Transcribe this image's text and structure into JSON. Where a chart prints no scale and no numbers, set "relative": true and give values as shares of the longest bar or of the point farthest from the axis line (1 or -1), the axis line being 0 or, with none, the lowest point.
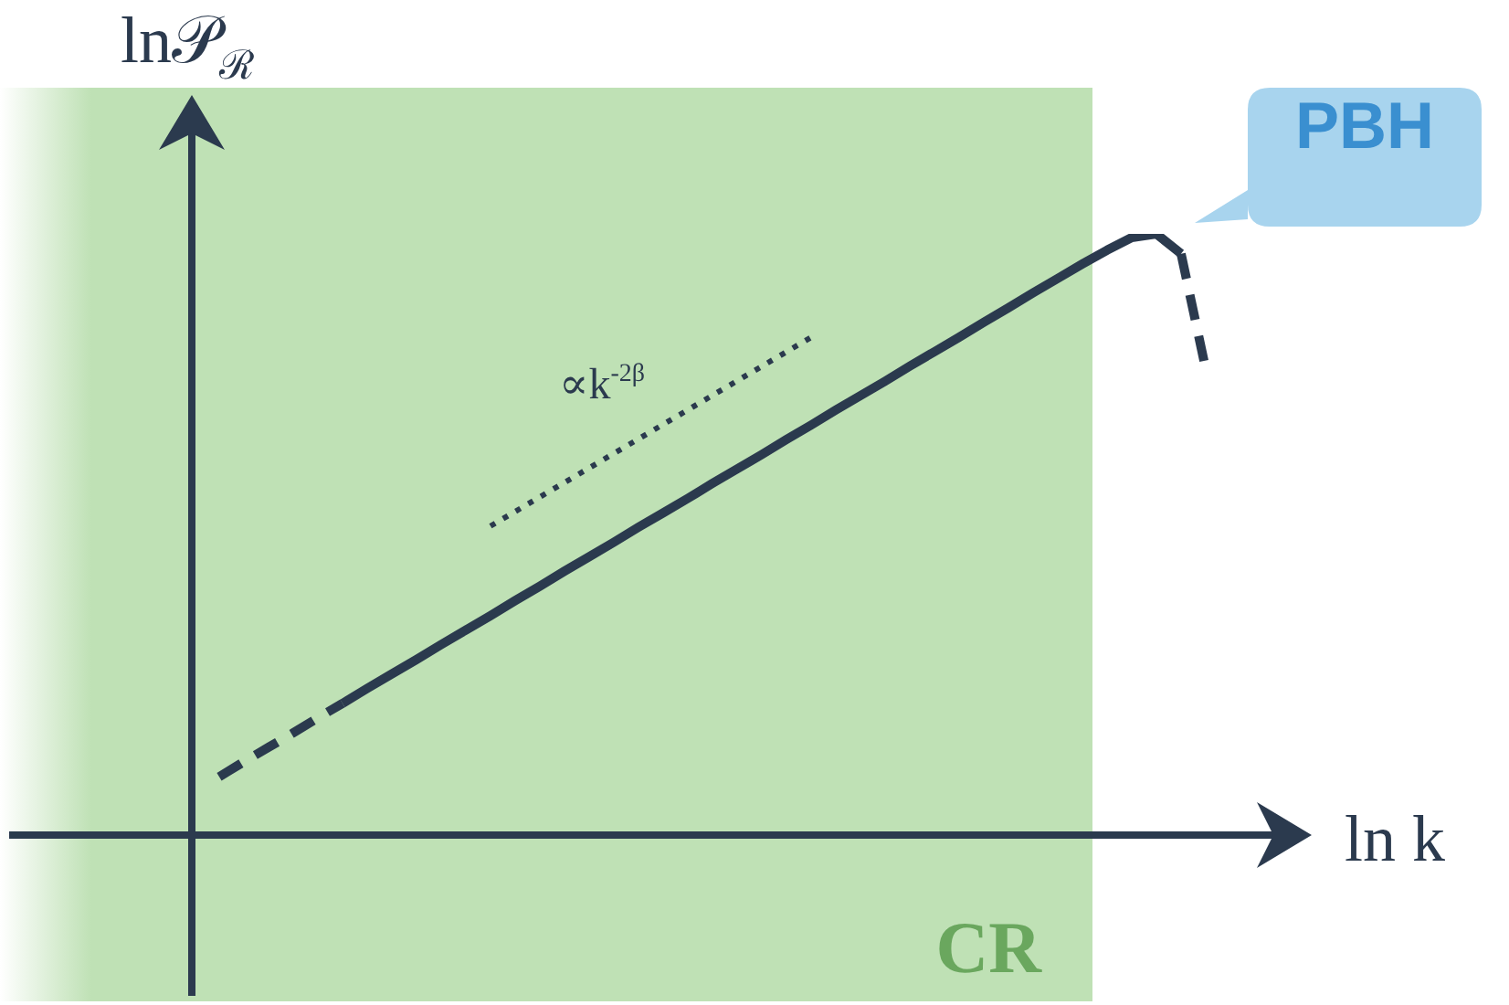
{
  "chart_data": {
    "type": "line",
    "relative": true,
    "xlabel": "ln k",
    "ylabel": "ln𝒫$_{ℛ}$",
    "legend": false,
    "categories": [
      null,
      null,
      null,
      null,
      null,
      null,
      null,
      null,
      null,
      null,
      null,
      null,
      null,
      null,
      null,
      null,
      null,
      null,
      null,
      null,
      null,
      null,
      null,
      null,
      null,
      null,
      null,
      null,
      null,
      null,
      null,
      null,
      null,
      null,
      null,
      null,
      null,
      null,
      null,
      null,
      null
    ],
    "series": [
      {
        "color": "#2b3a4e",
        "line_style": "dashed",
        "values": [
          0.097,
          0.122,
          0.146,
          0.17,
          0.195,
          0.219,
          null,
          null,
          null,
          null,
          null,
          null,
          null,
          null,
          null,
          null,
          null,
          null,
          null,
          null,
          null,
          null,
          null,
          null,
          null,
          null,
          null,
          null,
          null,
          null,
          null,
          null,
          null,
          null,
          null,
          null,
          null,
          null,
          null,
          null,
          null
        ]
      },
      {
        "color": "#2b3a4e",
        "line_style": "solid",
        "values": [
          null,
          null,
          null,
          null,
          null,
          0.219,
          0.244,
          0.268,
          0.292,
          0.317,
          0.341,
          0.365,
          0.39,
          0.414,
          0.439,
          0.463,
          0.487,
          0.512,
          0.536,
          0.56,
          0.585,
          0.609,
          0.633,
          0.658,
          0.682,
          0.707,
          0.731,
          0.755,
          0.78,
          0.804,
          0.828,
          0.853,
          0.877,
          0.902,
          0.926,
          0.95,
          0.973,
          0.994,
          1,
          0.967,
          null
        ]
      },
      {
        "color": "#2b3a4e",
        "line_style": "dashed",
        "values": [
          null,
          null,
          null,
          null,
          null,
          null,
          null,
          null,
          null,
          null,
          null,
          null,
          null,
          null,
          null,
          null,
          null,
          null,
          null,
          null,
          null,
          null,
          null,
          null,
          null,
          null,
          null,
          null,
          null,
          null,
          null,
          null,
          null,
          null,
          null,
          null,
          null,
          null,
          null,
          0.967,
          0.775
        ]
      },
      {
        "color": "#2b3a4e",
        "line_style": "dotted",
        "values": [
          null,
          null,
          null,
          null,
          null,
          null,
          null,
          null,
          null,
          null,
          null,
          0.514,
          null,
          null,
          null,
          null,
          null,
          null,
          null,
          null,
          null,
          null,
          null,
          null,
          0.828,
          null,
          null,
          null,
          null,
          null,
          null,
          null,
          null,
          null,
          null,
          null,
          null,
          null,
          null,
          null,
          null
        ]
      }
    ],
    "annotations": [
      "∝k$^{-2β}$",
      "PBH",
      "CR"
    ]
  }
}
